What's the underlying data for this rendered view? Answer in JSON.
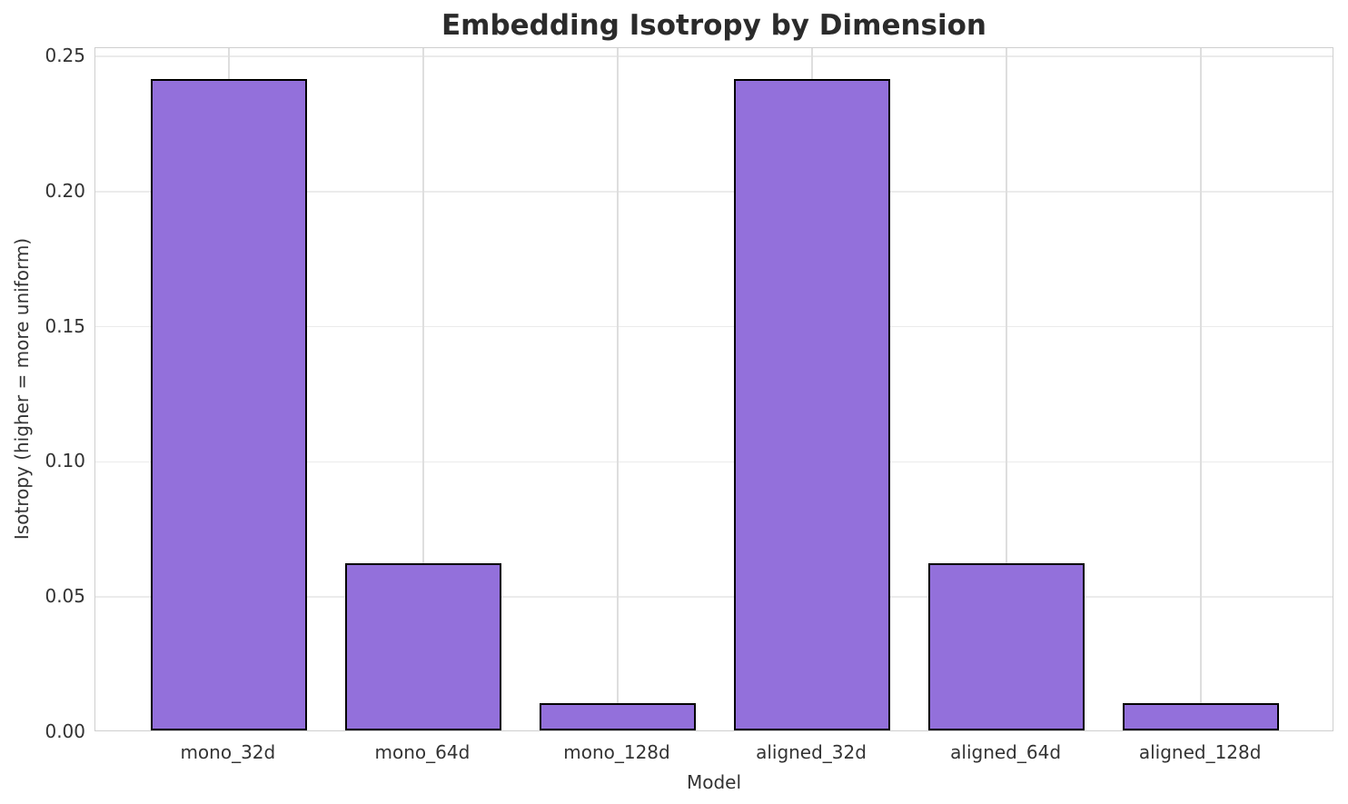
{
  "chart_data": {
    "type": "bar",
    "title": "Embedding Isotropy by Dimension",
    "xlabel": "Model",
    "ylabel": "Isotropy (higher = more uniform)",
    "categories": [
      "mono_32d",
      "mono_64d",
      "mono_128d",
      "aligned_32d",
      "aligned_64d",
      "aligned_128d"
    ],
    "values": [
      0.241,
      0.062,
      0.01,
      0.241,
      0.062,
      0.01
    ],
    "ylim": [
      0,
      0.2531
    ],
    "yticks": [
      {
        "value": 0.0,
        "label": "0.00"
      },
      {
        "value": 0.05,
        "label": "0.05"
      },
      {
        "value": 0.1,
        "label": "0.10"
      },
      {
        "value": 0.15,
        "label": "0.15"
      },
      {
        "value": 0.2,
        "label": "0.20"
      },
      {
        "value": 0.25,
        "label": "0.25"
      }
    ],
    "grid": true,
    "legend_position": "none",
    "colors": {
      "bar_fill": "#9370DB",
      "bar_edge": "#000000",
      "hgrid": "#ebebeb",
      "vgrid": "#dedede",
      "spine": "#cfcfcf",
      "tick_text": "#333333",
      "title_text": "#2b2b2b"
    }
  }
}
